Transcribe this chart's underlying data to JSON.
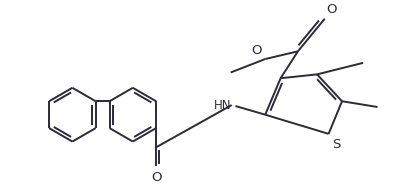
{
  "bg_color": "#ffffff",
  "line_color": "#2a2a3a",
  "line_width": 1.4,
  "font_size": 8.5,
  "fig_width": 4.0,
  "fig_height": 1.86,
  "xlim": [
    0,
    400
  ],
  "ylim": [
    0,
    186
  ]
}
